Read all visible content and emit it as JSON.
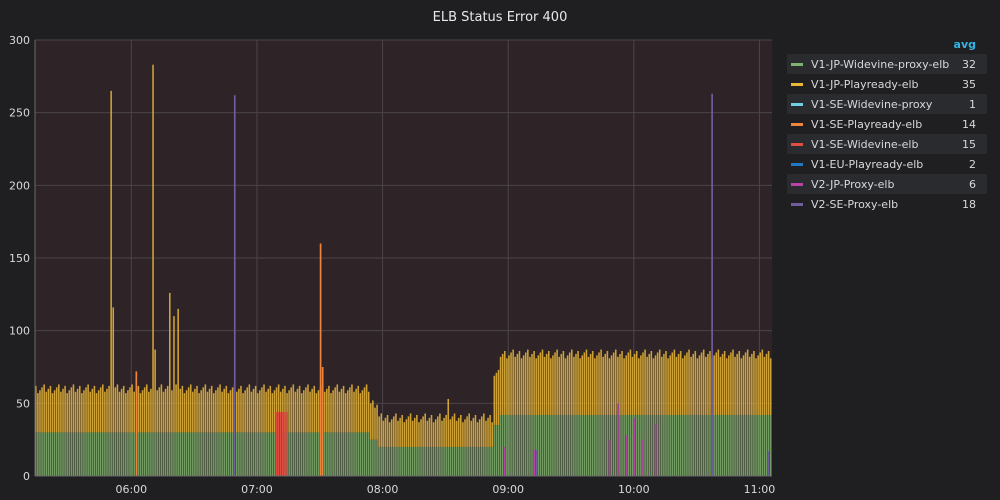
{
  "panel": {
    "title": "ELB Status Error 400"
  },
  "legend": {
    "header": "avg",
    "items": [
      {
        "name": "V1-JP-Widevine-proxy-elb",
        "avg": "32",
        "color": "#7eb26d"
      },
      {
        "name": "V1-JP-Playready-elb",
        "avg": "35",
        "color": "#eab839"
      },
      {
        "name": "V1-SE-Widevine-proxy",
        "avg": "1",
        "color": "#6ed0e0"
      },
      {
        "name": "V1-SE-Playready-elb",
        "avg": "14",
        "color": "#ef843c"
      },
      {
        "name": "V1-SE-Widevine-elb",
        "avg": "15",
        "color": "#e24d42"
      },
      {
        "name": "V1-EU-Playready-elb",
        "avg": "2",
        "color": "#1f78c1"
      },
      {
        "name": "V2-JP-Proxy-elb",
        "avg": "6",
        "color": "#ba43a9"
      },
      {
        "name": "V2-SE-Proxy-elb",
        "avg": "18",
        "color": "#705da0"
      }
    ]
  },
  "chart_data": {
    "type": "bar",
    "stacked": true,
    "title": "ELB Status Error 400",
    "x_range": [
      "05:14",
      "11:06"
    ],
    "x_ticks": [
      "06:00",
      "07:00",
      "08:00",
      "09:00",
      "10:00",
      "11:00"
    ],
    "ylim": [
      0,
      300
    ],
    "y_ticks": [
      "0",
      "50",
      "100",
      "150",
      "200",
      "250",
      "300"
    ],
    "grid": true,
    "legend_position": "right",
    "series": [
      {
        "name": "V1-JP-Widevine-proxy-elb",
        "color": "#7eb26d",
        "segments": [
          [
            "05:14",
            "07:54",
            30
          ],
          [
            "07:54",
            "07:58",
            25
          ],
          [
            "07:58",
            "08:53",
            20
          ],
          [
            "08:53",
            "08:56",
            35
          ],
          [
            "08:56",
            "11:06",
            42
          ]
        ]
      },
      {
        "name": "V1-JP-Playready-elb",
        "color": "#eab839",
        "segments": [
          [
            "05:14",
            "07:54",
            30
          ],
          [
            "07:54",
            "07:58",
            25
          ],
          [
            "07:58",
            "08:53",
            20
          ],
          [
            "08:53",
            "08:56",
            35
          ],
          [
            "08:56",
            "11:06",
            42
          ]
        ],
        "spikes": [
          [
            "05:50",
            265
          ],
          [
            "05:51",
            116
          ],
          [
            "06:10",
            283
          ],
          [
            "06:11",
            87
          ],
          [
            "06:18",
            126
          ],
          [
            "06:20",
            110
          ],
          [
            "06:22",
            115
          ],
          [
            "08:31",
            53
          ]
        ]
      },
      {
        "name": "V1-SE-Widevine-proxy",
        "color": "#6ed0e0",
        "spikes": []
      },
      {
        "name": "V1-SE-Playready-elb",
        "color": "#ef843c",
        "spikes": [
          [
            "07:30",
            160
          ],
          [
            "07:31",
            75
          ],
          [
            "06:02",
            72
          ]
        ]
      },
      {
        "name": "V1-SE-Widevine-elb",
        "color": "#e24d42",
        "spikes": [
          [
            "07:09",
            44
          ],
          [
            "07:10",
            44
          ],
          [
            "07:11",
            44
          ],
          [
            "07:12",
            44
          ],
          [
            "07:13",
            44
          ],
          [
            "07:14",
            44
          ]
        ]
      },
      {
        "name": "V1-EU-Playready-elb",
        "color": "#1f78c1",
        "spikes": []
      },
      {
        "name": "V2-JP-Proxy-elb",
        "color": "#ba43a9",
        "spikes": [
          [
            "08:58",
            20
          ],
          [
            "09:12",
            18
          ],
          [
            "09:48",
            25
          ],
          [
            "09:52",
            50
          ],
          [
            "09:56",
            28
          ],
          [
            "10:00",
            40
          ],
          [
            "10:04",
            25
          ],
          [
            "10:10",
            36
          ]
        ]
      },
      {
        "name": "V2-SE-Proxy-elb",
        "color": "#705da0",
        "spikes": [
          [
            "06:49",
            262
          ],
          [
            "10:37",
            263
          ],
          [
            "09:13",
            18
          ],
          [
            "11:04",
            17
          ]
        ]
      }
    ]
  }
}
